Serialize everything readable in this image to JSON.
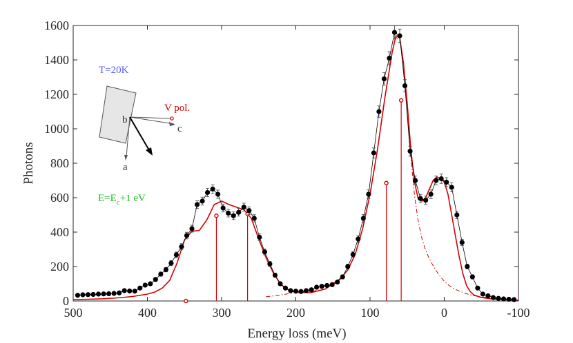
{
  "chart_data": {
    "type": "line",
    "xlabel": "Energy loss (meV)",
    "ylabel": "Photons",
    "xlim": [
      500,
      -100
    ],
    "ylim": [
      0,
      1600
    ],
    "x_ticks": [
      500,
      400,
      300,
      200,
      100,
      0,
      -100
    ],
    "x_tick_labels": [
      "500",
      "400",
      "300",
      "200",
      "100",
      "0",
      "-100"
    ],
    "y_ticks": [
      0,
      200,
      400,
      600,
      800,
      1000,
      1200,
      1400,
      1600
    ],
    "y_tick_labels": [
      "0",
      "200",
      "400",
      "600",
      "800",
      "1000",
      "1200",
      "1400",
      "1600"
    ],
    "grid": false,
    "colors": {
      "data": "#000000",
      "fit": "#d40000",
      "temp_text": "#5a5aff",
      "pol_text": "#d40000",
      "energy_text": "#22bb22",
      "axis": "#262626"
    },
    "data_points": {
      "x": [
        494,
        487,
        480,
        473,
        466,
        459,
        452,
        445,
        438,
        431,
        424,
        417,
        410,
        403,
        396,
        389,
        382,
        375,
        368,
        361,
        354,
        347,
        340,
        333,
        326,
        319,
        312,
        305,
        298,
        291,
        284,
        277,
        270,
        263,
        256,
        249,
        242,
        235,
        228,
        221,
        214,
        207,
        200,
        193,
        186,
        179,
        172,
        165,
        158,
        151,
        144,
        137,
        130,
        123,
        116,
        109,
        102,
        95,
        88,
        81,
        74,
        67,
        60,
        53,
        46,
        39,
        32,
        25,
        18,
        11,
        4,
        -3,
        -10,
        -17,
        -24,
        -31,
        -38,
        -45,
        -52,
        -59,
        -66,
        -73,
        -80,
        -87,
        -94
      ],
      "y": [
        33,
        36,
        37,
        38,
        40,
        41,
        42,
        44,
        47,
        60,
        58,
        57,
        75,
        92,
        100,
        125,
        156,
        182,
        220,
        268,
        315,
        380,
        420,
        560,
        580,
        630,
        650,
        620,
        540,
        510,
        495,
        515,
        545,
        525,
        480,
        370,
        285,
        215,
        150,
        100,
        75,
        60,
        57,
        55,
        60,
        65,
        80,
        85,
        90,
        95,
        110,
        140,
        200,
        270,
        360,
        480,
        620,
        860,
        1100,
        1290,
        1410,
        1560,
        1540,
        1250,
        870,
        700,
        595,
        585,
        620,
        700,
        710,
        690,
        660,
        500,
        340,
        200,
        140,
        75,
        40,
        30,
        20,
        15,
        12,
        10,
        8
      ],
      "err": [
        6,
        6,
        6,
        6,
        6,
        6,
        6,
        7,
        7,
        8,
        8,
        8,
        9,
        10,
        10,
        11,
        12,
        13,
        15,
        16,
        18,
        19,
        20,
        22,
        23,
        24,
        25,
        24,
        23,
        22,
        22,
        22,
        23,
        22,
        21,
        19,
        17,
        15,
        12,
        10,
        9,
        8,
        8,
        7,
        8,
        8,
        9,
        9,
        9,
        10,
        10,
        12,
        14,
        16,
        19,
        22,
        25,
        29,
        33,
        36,
        38,
        39,
        39,
        35,
        29,
        26,
        24,
        24,
        25,
        26,
        27,
        26,
        26,
        22,
        18,
        14,
        12,
        9,
        6,
        5,
        4,
        4,
        3,
        3,
        3
      ]
    },
    "fit_total": {
      "x": [
        500,
        480,
        460,
        440,
        420,
        400,
        390,
        380,
        370,
        360,
        350,
        340,
        330,
        320,
        310,
        300,
        290,
        280,
        270,
        260,
        250,
        240,
        230,
        220,
        210,
        200,
        180,
        160,
        140,
        130,
        120,
        110,
        100,
        90,
        80,
        70,
        65,
        60,
        55,
        50,
        45,
        40,
        35,
        30,
        25,
        20,
        15,
        10,
        5,
        0,
        -5,
        -10,
        -15,
        -20,
        -25,
        -30,
        -35,
        -40,
        -50,
        -60,
        -70,
        -80,
        -90,
        -100
      ],
      "y": [
        8,
        10,
        13,
        18,
        26,
        40,
        52,
        75,
        120,
        220,
        355,
        405,
        410,
        470,
        560,
        580,
        560,
        545,
        530,
        480,
        360,
        250,
        160,
        95,
        65,
        50,
        48,
        70,
        130,
        180,
        270,
        420,
        620,
        880,
        1180,
        1450,
        1540,
        1530,
        1380,
        1150,
        880,
        690,
        590,
        580,
        600,
        650,
        700,
        720,
        710,
        690,
        620,
        500,
        380,
        260,
        160,
        90,
        55,
        35,
        20,
        14,
        10,
        8,
        6,
        5
      ]
    },
    "fit_dashdot": {
      "x": [
        240,
        220,
        200,
        180,
        160,
        140,
        130,
        120,
        110,
        100,
        90,
        80,
        70,
        65,
        60,
        55,
        50,
        45,
        40,
        35,
        30,
        25,
        20,
        15,
        10,
        5,
        0,
        -5,
        -10,
        -15,
        -20,
        -30,
        -40,
        -50,
        -60,
        -70,
        -80,
        -90,
        -100
      ],
      "y": [
        25,
        35,
        50,
        55,
        70,
        130,
        180,
        270,
        420,
        620,
        880,
        1180,
        1450,
        1530,
        1520,
        1400,
        1120,
        840,
        610,
        460,
        360,
        295,
        245,
        205,
        170,
        140,
        115,
        95,
        80,
        68,
        58,
        42,
        31,
        24,
        18,
        14,
        11,
        8,
        6
      ]
    },
    "stems": [
      {
        "x": 348,
        "y": 0
      },
      {
        "x": 307,
        "y": 495
      },
      {
        "x": 265,
        "y": 505
      },
      {
        "x": 78,
        "y": 685
      },
      {
        "x": 58,
        "y": 1165
      }
    ],
    "annotations": {
      "temperature": "T=20K",
      "polarization": "V pol.",
      "energy_main": "E=E",
      "energy_sub": "c",
      "energy_rest": "+1 eV",
      "axis_a": "a",
      "axis_b": "b",
      "axis_c": "c"
    }
  }
}
